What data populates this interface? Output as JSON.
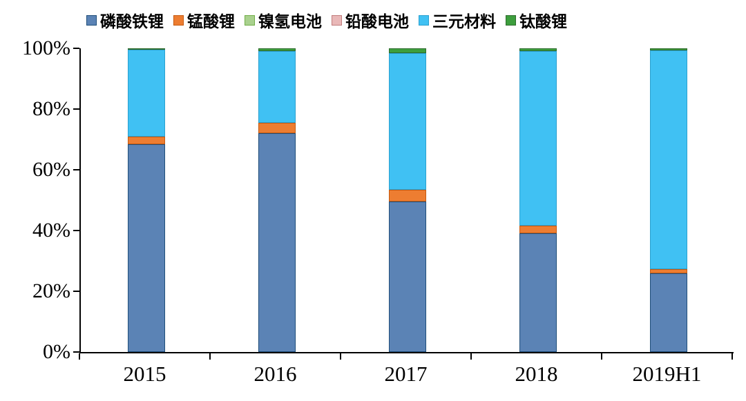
{
  "chart_data": {
    "type": "bar",
    "subtype": "stacked-100-percent",
    "title": "",
    "xlabel": "",
    "ylabel": "",
    "ylim": [
      0,
      100
    ],
    "grid": false,
    "legend_position": "top",
    "categories": [
      "2015",
      "2016",
      "2017",
      "2018",
      "2019H1"
    ],
    "y_ticks": [
      "0%",
      "20%",
      "40%",
      "60%",
      "80%",
      "100%"
    ],
    "series": [
      {
        "name": "磷酸铁锂",
        "color": "#5b83b5",
        "border": "#1f4e79",
        "values": [
          68.5,
          72.0,
          49.5,
          39.0,
          26.0
        ]
      },
      {
        "name": "锰酸锂",
        "color": "#ed7d31",
        "border": "#c55a11",
        "values": [
          2.5,
          3.5,
          4.0,
          2.5,
          1.2
        ]
      },
      {
        "name": "镍氢电池",
        "color": "#a9d18e",
        "border": "#70ad47",
        "values": [
          0,
          0,
          0,
          0,
          0
        ]
      },
      {
        "name": "铅酸电池",
        "color": "#e9b8b8",
        "border": "#c07b7b",
        "values": [
          0,
          0,
          0,
          0,
          0
        ]
      },
      {
        "name": "三元材料",
        "color": "#40c1f3",
        "border": "#2aa0cf",
        "values": [
          28.5,
          23.5,
          45.0,
          57.7,
          72.1
        ]
      },
      {
        "name": "钛酸锂",
        "color": "#3d9e3d",
        "border": "#2c6b2c",
        "values": [
          0.5,
          1.0,
          1.5,
          0.8,
          0.7
        ]
      }
    ]
  }
}
